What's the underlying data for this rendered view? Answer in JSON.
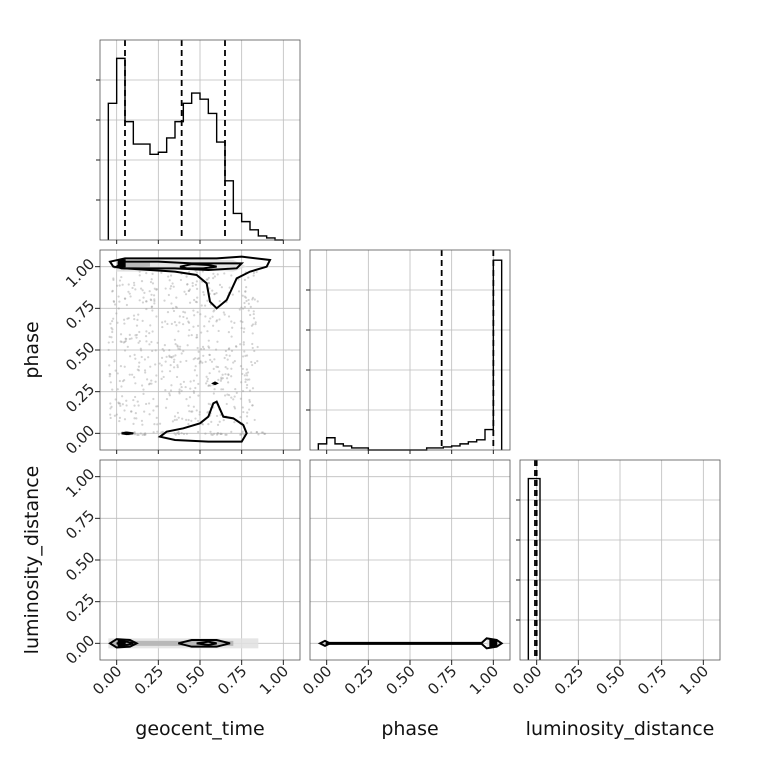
{
  "chart_data": [
    {
      "type": "histogram",
      "panel": "geocent_time-1d",
      "parameter": "geocent_time",
      "bin_edges": [
        -0.05,
        0.0,
        0.05,
        0.1,
        0.15,
        0.2,
        0.25,
        0.3,
        0.35,
        0.4,
        0.45,
        0.5,
        0.55,
        0.6,
        0.65,
        0.7,
        0.75,
        0.8,
        0.85,
        0.9,
        0.95,
        1.0
      ],
      "counts": [
        0.67,
        0.89,
        0.58,
        0.47,
        0.47,
        0.42,
        0.43,
        0.5,
        0.58,
        0.67,
        0.72,
        0.69,
        0.62,
        0.48,
        0.29,
        0.13,
        0.09,
        0.05,
        0.02,
        0.01,
        0.0
      ],
      "quantiles": [
        0.05,
        0.39,
        0.65
      ],
      "xlim": [
        -0.1,
        1.1
      ],
      "ylim": [
        0,
        0.98
      ]
    },
    {
      "type": "histogram",
      "panel": "phase-1d",
      "parameter": "phase",
      "bin_edges": [
        -0.05,
        0.0,
        0.05,
        0.1,
        0.15,
        0.2,
        0.25,
        0.3,
        0.35,
        0.4,
        0.45,
        0.5,
        0.55,
        0.6,
        0.65,
        0.7,
        0.75,
        0.8,
        0.85,
        0.9,
        0.95,
        1.0,
        1.05
      ],
      "counts": [
        0.03,
        0.06,
        0.03,
        0.02,
        0.01,
        0.01,
        0.0,
        0.0,
        0.0,
        0.0,
        0.0,
        0.0,
        0.0,
        0.01,
        0.01,
        0.015,
        0.02,
        0.03,
        0.04,
        0.05,
        0.1,
        0.93
      ],
      "quantiles": [
        0.69,
        1.0
      ],
      "xlim": [
        -0.1,
        1.1
      ],
      "ylim": [
        0,
        0.98
      ]
    },
    {
      "type": "histogram",
      "panel": "luminosity_distance-1d",
      "parameter": "luminosity_distance",
      "bin_edges": [
        -0.05,
        0.0,
        0.02
      ],
      "counts": [
        0.98,
        0.98
      ],
      "quantiles": [
        -0.01,
        0.0
      ],
      "xlim": [
        -0.1,
        1.1
      ],
      "ylim": [
        0,
        1.08
      ]
    },
    {
      "type": "contour",
      "panel": "geocent_time-vs-phase",
      "x": "geocent_time",
      "y": "phase",
      "xlim": [
        -0.1,
        1.1
      ],
      "ylim": [
        -0.1,
        1.1
      ],
      "contours": [
        [
          [
            -0.04,
            1.03
          ],
          [
            0.05,
            1.05
          ],
          [
            0.25,
            1.05
          ],
          [
            0.45,
            1.05
          ],
          [
            0.6,
            1.05
          ],
          [
            0.75,
            1.06
          ],
          [
            0.92,
            1.04
          ],
          [
            0.9,
            1.0
          ],
          [
            0.8,
            0.97
          ],
          [
            0.72,
            0.93
          ],
          [
            0.66,
            0.8
          ],
          [
            0.6,
            0.75
          ],
          [
            0.56,
            0.79
          ],
          [
            0.54,
            0.9
          ],
          [
            0.48,
            0.95
          ],
          [
            0.35,
            0.97
          ],
          [
            0.2,
            0.98
          ],
          [
            0.05,
            0.99
          ],
          [
            -0.02,
            1.0
          ],
          [
            -0.04,
            1.03
          ]
        ],
        [
          [
            0.0,
            1.0
          ],
          [
            0.05,
            1.03
          ],
          [
            0.25,
            1.03
          ],
          [
            0.45,
            1.02
          ],
          [
            0.6,
            1.02
          ],
          [
            0.75,
            1.02
          ],
          [
            0.72,
            0.99
          ],
          [
            0.55,
            0.98
          ],
          [
            0.35,
            0.99
          ],
          [
            0.15,
            0.99
          ],
          [
            0.03,
            0.99
          ],
          [
            0.0,
            1.0
          ]
        ],
        [
          [
            0.26,
            -0.02
          ],
          [
            0.35,
            -0.04
          ],
          [
            0.55,
            -0.05
          ],
          [
            0.75,
            -0.05
          ],
          [
            0.78,
            0.0
          ],
          [
            0.76,
            0.05
          ],
          [
            0.7,
            0.09
          ],
          [
            0.64,
            0.1
          ],
          [
            0.6,
            0.19
          ],
          [
            0.58,
            0.18
          ],
          [
            0.55,
            0.1
          ],
          [
            0.5,
            0.06
          ],
          [
            0.4,
            0.03
          ],
          [
            0.3,
            0.01
          ],
          [
            0.26,
            -0.02
          ]
        ],
        [
          [
            0.03,
            0.0
          ],
          [
            0.06,
            0.005
          ],
          [
            0.1,
            0.0
          ],
          [
            0.06,
            -0.005
          ],
          [
            0.03,
            0.0
          ]
        ],
        [
          [
            0.38,
            1.0
          ],
          [
            0.45,
            1.015
          ],
          [
            0.55,
            1.01
          ],
          [
            0.6,
            1.0
          ],
          [
            0.52,
            0.99
          ],
          [
            0.42,
            0.99
          ],
          [
            0.38,
            1.0
          ]
        ],
        [
          [
            0.58,
            0.3
          ],
          [
            0.59,
            0.305
          ],
          [
            0.6,
            0.3
          ],
          [
            0.59,
            0.295
          ],
          [
            0.58,
            0.3
          ]
        ]
      ],
      "density_bands": [
        [
          [
            0.0,
            0.97
          ],
          [
            0.15,
            0.97
          ],
          [
            0.35,
            0.98
          ],
          [
            0.55,
            0.98
          ],
          [
            0.7,
            0.97
          ],
          [
            0.78,
            1.0
          ],
          [
            0.7,
            1.04
          ],
          [
            0.4,
            1.045
          ],
          [
            0.1,
            1.045
          ],
          [
            0.0,
            1.04
          ]
        ],
        [
          [
            0.0,
            0.99
          ],
          [
            0.1,
            0.995
          ],
          [
            0.2,
            1.0
          ],
          [
            0.2,
            1.03
          ],
          [
            0.1,
            1.035
          ],
          [
            0.0,
            1.03
          ]
        ]
      ],
      "peak_markers": [
        [
          0.03,
          1.02
        ]
      ],
      "scatter_regions": [
        {
          "x": [
            -0.05,
            0.85
          ],
          "y": [
            0.05,
            1.0
          ],
          "count": 620
        },
        {
          "x": [
            0.0,
            0.9
          ],
          "y": [
            -0.01,
            0.01
          ],
          "count": 60
        }
      ]
    },
    {
      "type": "contour",
      "panel": "geocent_time-vs-luminosity_distance",
      "x": "geocent_time",
      "y": "luminosity_distance",
      "xlim": [
        -0.1,
        1.1
      ],
      "ylim": [
        -0.1,
        1.1
      ],
      "contours": [
        [
          [
            -0.04,
            0.0
          ],
          [
            0.0,
            0.025
          ],
          [
            0.08,
            0.02
          ],
          [
            0.12,
            0.0
          ],
          [
            0.08,
            -0.02
          ],
          [
            0.0,
            -0.025
          ],
          [
            -0.04,
            0.0
          ]
        ],
        [
          [
            0.37,
            0.0
          ],
          [
            0.45,
            0.02
          ],
          [
            0.6,
            0.02
          ],
          [
            0.68,
            0.0
          ],
          [
            0.6,
            -0.02
          ],
          [
            0.45,
            -0.02
          ],
          [
            0.37,
            0.0
          ]
        ],
        [
          [
            0.0,
            0.0
          ],
          [
            0.06,
            0.01
          ],
          [
            0.1,
            0.0
          ],
          [
            0.06,
            -0.01
          ],
          [
            0.0,
            0.0
          ]
        ],
        [
          [
            0.48,
            0.0
          ],
          [
            0.55,
            0.01
          ],
          [
            0.6,
            0.0
          ],
          [
            0.55,
            -0.01
          ],
          [
            0.48,
            0.0
          ]
        ]
      ],
      "density_bands": [
        [
          [
            -0.05,
            -0.03
          ],
          [
            0.85,
            -0.03
          ],
          [
            0.85,
            0.03
          ],
          [
            -0.05,
            0.03
          ]
        ],
        [
          [
            -0.03,
            -0.015
          ],
          [
            0.7,
            -0.015
          ],
          [
            0.7,
            0.015
          ],
          [
            -0.03,
            0.015
          ]
        ]
      ],
      "peak_markers": [
        [
          0.03,
          0.0
        ]
      ],
      "scatter_regions": []
    },
    {
      "type": "contour",
      "panel": "phase-vs-luminosity_distance",
      "x": "phase",
      "y": "luminosity_distance",
      "xlim": [
        -0.1,
        1.1
      ],
      "ylim": [
        -0.1,
        1.1
      ],
      "contours": [
        [
          [
            -0.04,
            0.0
          ],
          [
            -0.01,
            0.015
          ],
          [
            0.02,
            0.0
          ],
          [
            -0.01,
            -0.015
          ],
          [
            -0.04,
            0.0
          ]
        ],
        [
          [
            0.0,
            0.003
          ],
          [
            0.93,
            0.003
          ],
          [
            0.96,
            0.03
          ],
          [
            1.02,
            0.02
          ],
          [
            1.05,
            0.0
          ],
          [
            1.02,
            -0.02
          ],
          [
            0.96,
            -0.03
          ],
          [
            0.93,
            -0.003
          ],
          [
            0.0,
            -0.003
          ],
          [
            0.0,
            0.003
          ]
        ]
      ],
      "density_bands": [
        [
          [
            0.96,
            -0.02
          ],
          [
            1.03,
            -0.02
          ],
          [
            1.03,
            0.02
          ],
          [
            0.96,
            0.02
          ]
        ]
      ],
      "peak_markers": [
        [
          1.0,
          0.0
        ]
      ],
      "scatter_regions": []
    }
  ],
  "axes": {
    "tick_values": [
      0.0,
      0.25,
      0.5,
      0.75,
      1.0
    ],
    "tick_labels": [
      "0.00",
      "0.25",
      "0.50",
      "0.75",
      "1.00"
    ],
    "xlabel_1": "geocent_time",
    "xlabel_2": "phase",
    "xlabel_3": "luminosity_distance",
    "ylabel_1": "phase",
    "ylabel_2": "luminosity_distance"
  },
  "style": {
    "line_color": "#000000",
    "scatter_color": "#9e9e9e",
    "fill_light": "#e0e0e0",
    "fill_mid": "#b0b0b0",
    "fill_dark": "#6a6a6a",
    "grid_color": "#bdbdbd",
    "frame_color": "#555555"
  }
}
